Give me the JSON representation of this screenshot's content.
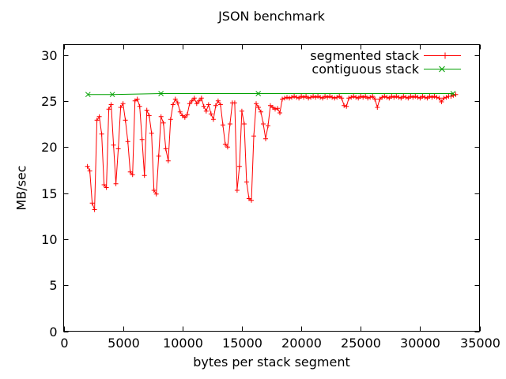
{
  "chart_data": {
    "type": "line",
    "title": "JSON benchmark",
    "xlabel": "bytes per stack segment",
    "ylabel": "MB/sec",
    "xlim": [
      0,
      35000
    ],
    "ylim": [
      0,
      30
    ],
    "x_ticks": [
      0,
      5000,
      10000,
      15000,
      20000,
      25000,
      30000,
      35000
    ],
    "y_ticks": [
      0,
      5,
      10,
      15,
      20,
      25,
      30
    ],
    "grid": false,
    "legend_position": "top-right-inside",
    "background": "#ffffff",
    "border_color": "#000000",
    "series": [
      {
        "name": "segmented stack",
        "color": "#ff0000",
        "marker": "plus",
        "x": [
          2000,
          2200,
          2400,
          2600,
          2800,
          3000,
          3200,
          3400,
          3600,
          3800,
          4000,
          4200,
          4400,
          4600,
          4800,
          5000,
          5200,
          5400,
          5600,
          5800,
          6000,
          6200,
          6400,
          6600,
          6800,
          7000,
          7200,
          7400,
          7600,
          7800,
          8000,
          8200,
          8400,
          8600,
          8800,
          9000,
          9200,
          9400,
          9600,
          9800,
          10000,
          10200,
          10400,
          10600,
          10800,
          11000,
          11200,
          11400,
          11600,
          11800,
          12000,
          12200,
          12400,
          12600,
          12800,
          13000,
          13200,
          13400,
          13600,
          13800,
          14000,
          14200,
          14400,
          14600,
          14800,
          15000,
          15200,
          15400,
          15600,
          15800,
          16000,
          16200,
          16400,
          16600,
          16800,
          17000,
          17200,
          17400,
          17600,
          17800,
          18000,
          18200,
          18400,
          18600,
          18800,
          19000,
          19200,
          19400,
          19600,
          19800,
          20000,
          20200,
          20400,
          20600,
          20800,
          21000,
          21200,
          21400,
          21600,
          21800,
          22000,
          22200,
          22400,
          22600,
          22800,
          23000,
          23200,
          23400,
          23600,
          23800,
          24000,
          24200,
          24400,
          24600,
          24800,
          25000,
          25200,
          25400,
          25600,
          25800,
          26000,
          26200,
          26400,
          26600,
          26800,
          27000,
          27200,
          27400,
          27600,
          27800,
          28000,
          28200,
          28400,
          28600,
          28800,
          29000,
          29200,
          29400,
          29600,
          29800,
          30000,
          30200,
          30400,
          30600,
          30800,
          31000,
          31200,
          31400,
          31600,
          31800,
          32000,
          32200,
          32400,
          32600,
          32800,
          33000
        ],
        "values": [
          17.9,
          17.4,
          13.9,
          13.2,
          22.9,
          23.3,
          21.4,
          15.9,
          15.6,
          24.1,
          24.6,
          20.2,
          16.0,
          19.8,
          24.3,
          24.7,
          22.9,
          20.6,
          17.3,
          17.0,
          25.0,
          25.2,
          24.4,
          20.8,
          16.9,
          24.0,
          23.4,
          21.5,
          15.3,
          14.9,
          19.0,
          23.3,
          22.6,
          19.8,
          18.5,
          23.0,
          24.6,
          25.2,
          24.8,
          23.8,
          23.4,
          23.2,
          23.5,
          24.7,
          25.0,
          25.3,
          24.7,
          25.0,
          25.3,
          24.4,
          23.9,
          24.6,
          23.6,
          23.0,
          24.5,
          25.0,
          24.6,
          22.4,
          20.3,
          20.0,
          22.5,
          24.8,
          24.8,
          15.3,
          17.9,
          23.9,
          22.5,
          16.2,
          14.4,
          14.2,
          21.2,
          24.7,
          24.3,
          23.8,
          22.5,
          20.9,
          22.3,
          24.5,
          24.3,
          24.1,
          24.2,
          23.7,
          25.2,
          25.3,
          25.4,
          25.3,
          25.4,
          25.5,
          25.4,
          25.3,
          25.5,
          25.4,
          25.5,
          25.3,
          25.4,
          25.5,
          25.4,
          25.5,
          25.4,
          25.3,
          25.5,
          25.4,
          25.5,
          25.4,
          25.3,
          25.4,
          25.5,
          25.3,
          24.5,
          24.4,
          25.3,
          25.4,
          25.5,
          25.4,
          25.3,
          25.5,
          25.4,
          25.5,
          25.3,
          25.4,
          25.5,
          25.2,
          24.3,
          25.2,
          25.4,
          25.5,
          25.4,
          25.3,
          25.5,
          25.4,
          25.5,
          25.4,
          25.3,
          25.5,
          25.4,
          25.3,
          25.5,
          25.4,
          25.5,
          25.4,
          25.3,
          25.5,
          25.4,
          25.3,
          25.5,
          25.4,
          25.5,
          25.4,
          25.3,
          24.9,
          25.3,
          25.4,
          25.5,
          25.5,
          25.6,
          25.7
        ]
      },
      {
        "name": "contiguous stack",
        "color": "#00a000",
        "marker": "cross",
        "x": [
          2048,
          4096,
          8192,
          16384,
          32768
        ],
        "values": [
          25.7,
          25.7,
          25.8,
          25.8,
          25.8
        ]
      }
    ]
  }
}
